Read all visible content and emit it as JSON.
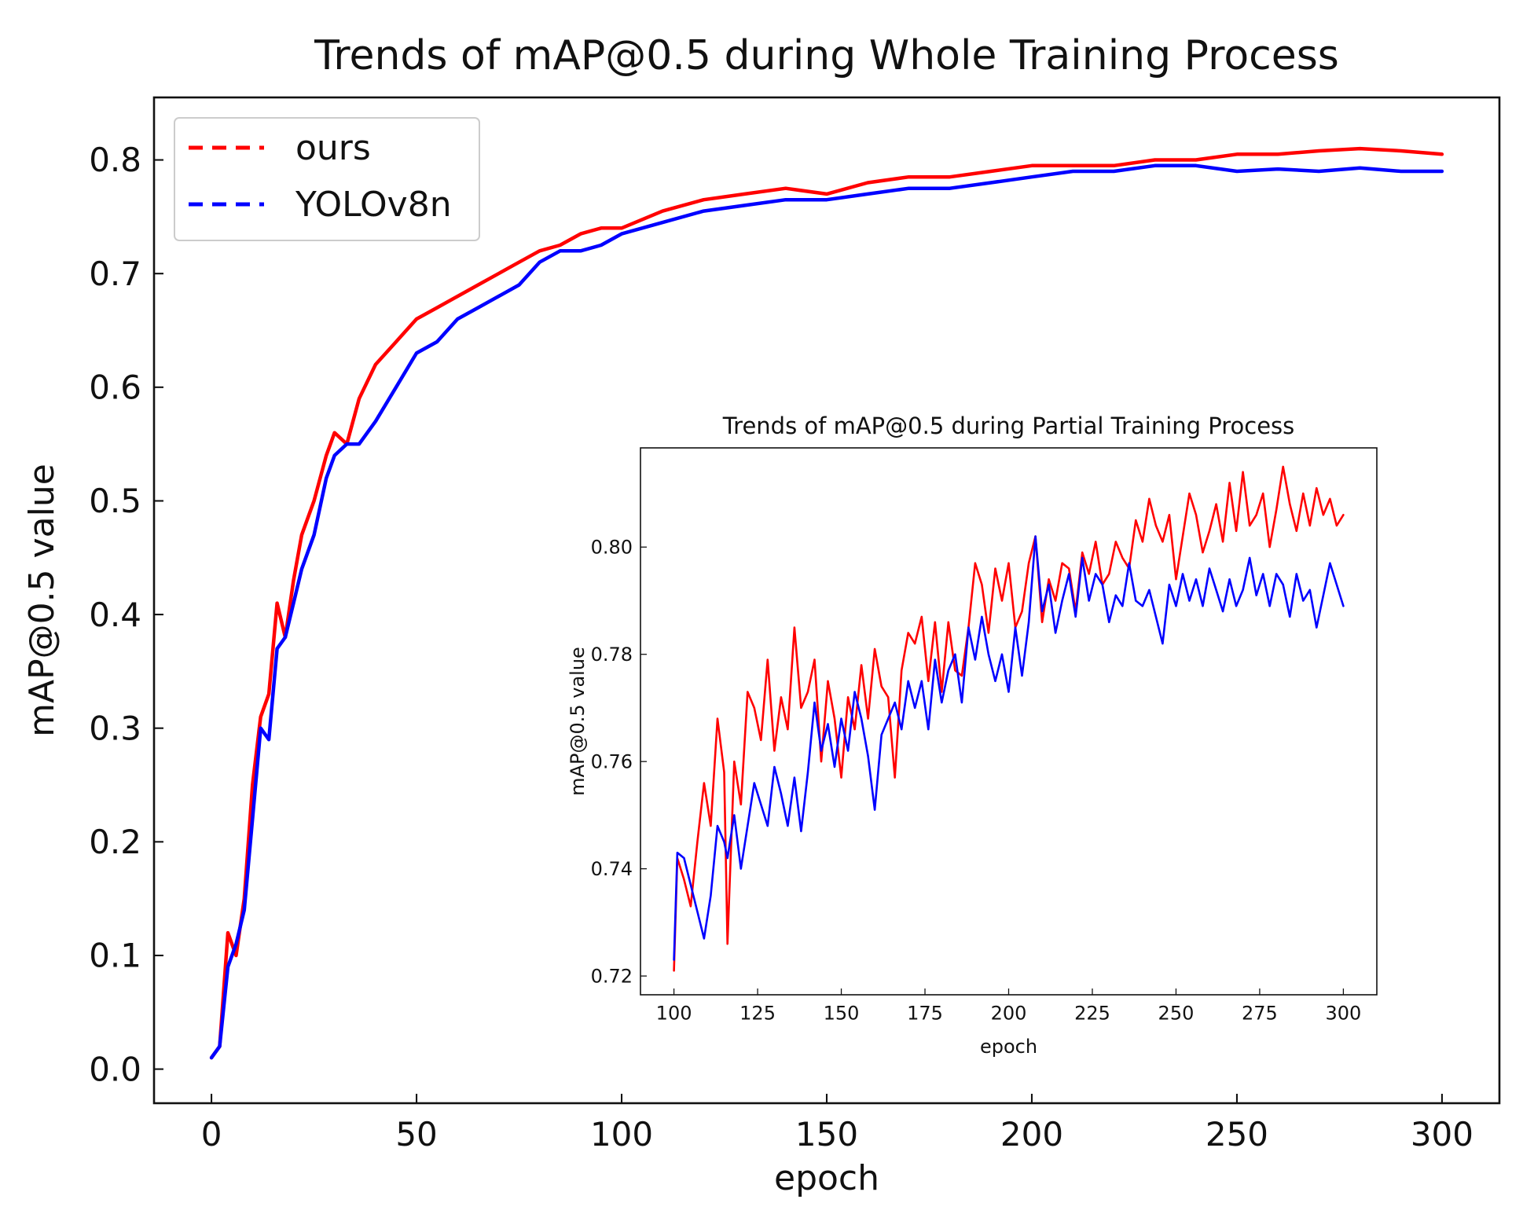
{
  "chart_data": [
    {
      "id": "main",
      "type": "line",
      "title": "Trends of mAP@0.5 during Whole Training Process",
      "xlabel": "epoch",
      "ylabel": "mAP@0.5 value",
      "xlim": [
        -14,
        314
      ],
      "ylim": [
        -0.03,
        0.855
      ],
      "xticks": [
        0,
        50,
        100,
        150,
        200,
        250,
        300
      ],
      "yticks": [
        0.0,
        0.1,
        0.2,
        0.3,
        0.4,
        0.5,
        0.6,
        0.7,
        0.8
      ],
      "ytick_labels": [
        "0.0",
        "0.1",
        "0.2",
        "0.3",
        "0.4",
        "0.5",
        "0.6",
        "0.7",
        "0.8"
      ],
      "grid": false,
      "legend_position": "upper-left",
      "line_style": "dashed legend, solid lines",
      "series": [
        {
          "name": "ours",
          "color": "#ff0000",
          "x": [
            0,
            2,
            4,
            6,
            8,
            10,
            12,
            14,
            16,
            18,
            20,
            22,
            25,
            28,
            30,
            33,
            36,
            40,
            45,
            50,
            55,
            60,
            65,
            70,
            75,
            80,
            85,
            90,
            95,
            100,
            110,
            120,
            130,
            140,
            150,
            160,
            170,
            180,
            190,
            200,
            210,
            220,
            230,
            240,
            250,
            260,
            270,
            280,
            290,
            300
          ],
          "y": [
            0.01,
            0.02,
            0.12,
            0.1,
            0.15,
            0.25,
            0.31,
            0.33,
            0.41,
            0.38,
            0.43,
            0.47,
            0.5,
            0.54,
            0.56,
            0.55,
            0.59,
            0.62,
            0.64,
            0.66,
            0.67,
            0.68,
            0.69,
            0.7,
            0.71,
            0.72,
            0.725,
            0.735,
            0.74,
            0.74,
            0.755,
            0.765,
            0.77,
            0.775,
            0.77,
            0.78,
            0.785,
            0.785,
            0.79,
            0.795,
            0.795,
            0.795,
            0.8,
            0.8,
            0.805,
            0.805,
            0.808,
            0.81,
            0.808,
            0.805
          ]
        },
        {
          "name": "YOLOv8n",
          "color": "#0000ff",
          "x": [
            0,
            2,
            4,
            6,
            8,
            10,
            12,
            14,
            16,
            18,
            20,
            22,
            25,
            28,
            30,
            33,
            36,
            40,
            45,
            50,
            55,
            60,
            65,
            70,
            75,
            80,
            85,
            90,
            95,
            100,
            110,
            120,
            130,
            140,
            150,
            160,
            170,
            180,
            190,
            200,
            210,
            220,
            230,
            240,
            250,
            260,
            270,
            280,
            290,
            300
          ],
          "y": [
            0.01,
            0.02,
            0.09,
            0.11,
            0.14,
            0.22,
            0.3,
            0.29,
            0.37,
            0.38,
            0.41,
            0.44,
            0.47,
            0.52,
            0.54,
            0.55,
            0.55,
            0.57,
            0.6,
            0.63,
            0.64,
            0.66,
            0.67,
            0.68,
            0.69,
            0.71,
            0.72,
            0.72,
            0.725,
            0.735,
            0.745,
            0.755,
            0.76,
            0.765,
            0.765,
            0.77,
            0.775,
            0.775,
            0.78,
            0.785,
            0.79,
            0.79,
            0.795,
            0.795,
            0.79,
            0.792,
            0.79,
            0.793,
            0.79,
            0.79
          ]
        }
      ]
    },
    {
      "id": "inset",
      "type": "line",
      "title": "Trends of mAP@0.5 during Partial Training Process",
      "xlabel": "epoch",
      "ylabel": "mAP@0.5 value",
      "xlim": [
        90,
        310
      ],
      "ylim": [
        0.7165,
        0.8185
      ],
      "xticks": [
        100,
        125,
        150,
        175,
        200,
        225,
        250,
        275,
        300
      ],
      "yticks": [
        0.72,
        0.74,
        0.76,
        0.78,
        0.8
      ],
      "ytick_labels": [
        "0.72",
        "0.74",
        "0.76",
        "0.78",
        "0.80"
      ],
      "grid": false,
      "series": [
        {
          "name": "ours",
          "color": "#ff0000",
          "x": [
            100,
            101,
            103,
            105,
            107,
            109,
            111,
            113,
            115,
            116,
            118,
            120,
            122,
            124,
            126,
            128,
            130,
            132,
            134,
            136,
            138,
            140,
            142,
            144,
            146,
            148,
            150,
            152,
            154,
            156,
            158,
            160,
            162,
            164,
            166,
            168,
            170,
            172,
            174,
            176,
            178,
            180,
            182,
            184,
            186,
            188,
            190,
            192,
            194,
            196,
            198,
            200,
            202,
            204,
            206,
            208,
            210,
            212,
            214,
            216,
            218,
            220,
            222,
            224,
            226,
            228,
            230,
            232,
            234,
            236,
            238,
            240,
            242,
            244,
            246,
            248,
            250,
            252,
            254,
            256,
            258,
            260,
            262,
            264,
            266,
            268,
            270,
            272,
            274,
            276,
            278,
            280,
            282,
            284,
            286,
            288,
            290,
            292,
            294,
            296,
            298,
            300
          ],
          "y": [
            0.721,
            0.742,
            0.738,
            0.733,
            0.745,
            0.756,
            0.748,
            0.768,
            0.758,
            0.726,
            0.76,
            0.752,
            0.773,
            0.77,
            0.764,
            0.779,
            0.762,
            0.772,
            0.766,
            0.785,
            0.77,
            0.773,
            0.779,
            0.76,
            0.775,
            0.768,
            0.757,
            0.772,
            0.766,
            0.778,
            0.768,
            0.781,
            0.774,
            0.772,
            0.757,
            0.777,
            0.784,
            0.782,
            0.787,
            0.775,
            0.786,
            0.773,
            0.786,
            0.777,
            0.776,
            0.785,
            0.797,
            0.793,
            0.784,
            0.796,
            0.79,
            0.797,
            0.785,
            0.788,
            0.797,
            0.802,
            0.786,
            0.794,
            0.79,
            0.797,
            0.796,
            0.788,
            0.799,
            0.795,
            0.801,
            0.793,
            0.795,
            0.801,
            0.798,
            0.796,
            0.805,
            0.801,
            0.809,
            0.804,
            0.801,
            0.806,
            0.794,
            0.802,
            0.81,
            0.806,
            0.799,
            0.803,
            0.808,
            0.801,
            0.812,
            0.803,
            0.814,
            0.804,
            0.806,
            0.81,
            0.8,
            0.807,
            0.815,
            0.808,
            0.803,
            0.81,
            0.804,
            0.811,
            0.806,
            0.809,
            0.804,
            0.806
          ]
        },
        {
          "name": "YOLOv8n",
          "color": "#0000ff",
          "x": [
            100,
            101,
            103,
            105,
            107,
            109,
            111,
            113,
            115,
            116,
            118,
            120,
            122,
            124,
            126,
            128,
            130,
            132,
            134,
            136,
            138,
            140,
            142,
            144,
            146,
            148,
            150,
            152,
            154,
            156,
            158,
            160,
            162,
            164,
            166,
            168,
            170,
            172,
            174,
            176,
            178,
            180,
            182,
            184,
            186,
            188,
            190,
            192,
            194,
            196,
            198,
            200,
            202,
            204,
            206,
            208,
            210,
            212,
            214,
            216,
            218,
            220,
            222,
            224,
            226,
            228,
            230,
            232,
            234,
            236,
            238,
            240,
            242,
            244,
            246,
            248,
            250,
            252,
            254,
            256,
            258,
            260,
            262,
            264,
            266,
            268,
            270,
            272,
            274,
            276,
            278,
            280,
            282,
            284,
            286,
            288,
            290,
            292,
            294,
            296,
            298,
            300
          ],
          "y": [
            0.723,
            0.743,
            0.742,
            0.737,
            0.732,
            0.727,
            0.735,
            0.748,
            0.745,
            0.742,
            0.75,
            0.74,
            0.748,
            0.756,
            0.752,
            0.748,
            0.759,
            0.754,
            0.748,
            0.757,
            0.747,
            0.758,
            0.771,
            0.762,
            0.767,
            0.759,
            0.768,
            0.762,
            0.773,
            0.768,
            0.761,
            0.751,
            0.765,
            0.768,
            0.771,
            0.766,
            0.775,
            0.77,
            0.775,
            0.766,
            0.779,
            0.771,
            0.777,
            0.78,
            0.771,
            0.785,
            0.779,
            0.787,
            0.78,
            0.775,
            0.78,
            0.773,
            0.785,
            0.776,
            0.786,
            0.802,
            0.788,
            0.793,
            0.784,
            0.79,
            0.795,
            0.787,
            0.798,
            0.79,
            0.795,
            0.793,
            0.786,
            0.791,
            0.789,
            0.797,
            0.79,
            0.789,
            0.792,
            0.787,
            0.782,
            0.793,
            0.789,
            0.795,
            0.79,
            0.794,
            0.789,
            0.796,
            0.792,
            0.788,
            0.794,
            0.789,
            0.792,
            0.798,
            0.791,
            0.795,
            0.789,
            0.795,
            0.793,
            0.787,
            0.795,
            0.79,
            0.792,
            0.785,
            0.791,
            0.797,
            0.793,
            0.789
          ]
        }
      ]
    }
  ]
}
